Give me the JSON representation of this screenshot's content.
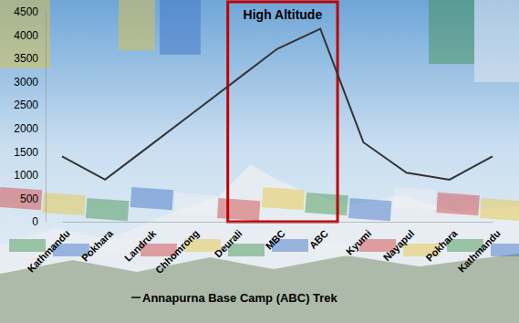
{
  "chart_data": {
    "type": "line",
    "annotation": "High Altitude",
    "categories": [
      "Kathmandu",
      "Pokhara",
      "Landruk",
      "Chhomrong",
      "Deurali",
      "MBC",
      "ABC",
      "Kyumi",
      "Nayapul",
      "Pokhara",
      "Kathmandu"
    ],
    "series": [
      {
        "name": "Annapurna Base Camp (ABC) Trek",
        "color": "#333333",
        "values": [
          1400,
          900,
          1600,
          2300,
          3000,
          3700,
          4130,
          1700,
          1050,
          900,
          1400
        ]
      }
    ],
    "ylim": [
      0,
      4500
    ],
    "yticks": [
      0,
      500,
      1000,
      1500,
      2000,
      2500,
      3000,
      3500,
      4000,
      4500
    ],
    "grid": false,
    "legend": "bottom"
  }
}
